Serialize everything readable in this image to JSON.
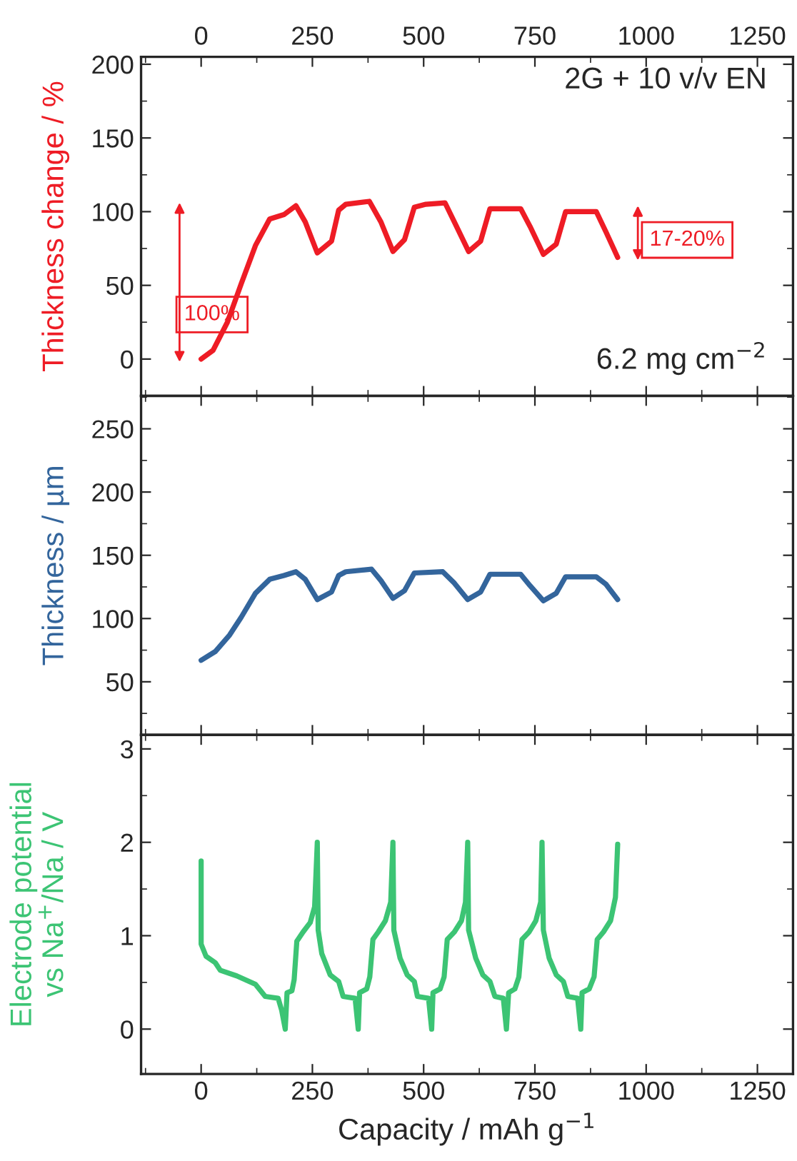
{
  "chart_data": [
    {
      "type": "line",
      "ylabel": "Thickness change / %",
      "xlim": [
        -135,
        1330
      ],
      "ylim": [
        -25,
        205
      ],
      "yticks": [
        0,
        50,
        100,
        150,
        200
      ],
      "x2lim": [
        -135,
        1330
      ],
      "x2ticks": [
        0,
        250,
        500,
        750,
        1000,
        1250
      ],
      "tick_labels": "y",
      "grid": false,
      "x": [
        0,
        27,
        59,
        90,
        122,
        154,
        186,
        213,
        234,
        261,
        293,
        309,
        325,
        378,
        404,
        431,
        457,
        479,
        505,
        548,
        569,
        601,
        628,
        649,
        718,
        739,
        769,
        798,
        819,
        888,
        910,
        936
      ],
      "series": [
        {
          "color": "#ee1c25",
          "values": [
            0,
            6,
            25,
            51,
            77,
            95,
            98,
            104,
            93,
            72,
            80,
            101,
            105,
            107,
            93,
            73,
            81,
            103,
            105,
            106,
            93,
            73,
            80,
            102,
            102,
            90,
            71,
            78,
            100,
            100,
            86,
            69
          ]
        }
      ],
      "annotations": [
        "2G + 10 v/v EN",
        "6.2 mg cm$^{−2}$",
        "100%",
        "17-20%"
      ]
    },
    {
      "type": "line",
      "ylabel": "Thickness / µm",
      "xlim": [
        -135,
        1330
      ],
      "ylim": [
        8,
        276
      ],
      "yticks": [
        50,
        100,
        150,
        200,
        250
      ],
      "tick_labels": "y",
      "grid": false,
      "x": [
        0,
        32,
        64,
        90,
        122,
        154,
        186,
        213,
        234,
        261,
        293,
        309,
        325,
        383,
        404,
        431,
        457,
        479,
        543,
        569,
        599,
        628,
        649,
        718,
        739,
        769,
        798,
        819,
        888,
        910,
        936
      ],
      "series": [
        {
          "color": "#33659c",
          "values": [
            67,
            74,
            87,
            101,
            120,
            131,
            134,
            137,
            131,
            115,
            121,
            134,
            137,
            139,
            130,
            116,
            122,
            136,
            137,
            128,
            115,
            121,
            135,
            135,
            126,
            114,
            120,
            133,
            133,
            127,
            115
          ]
        }
      ]
    },
    {
      "type": "line",
      "xlabel": "Capacity / mAh g$^{−1}$",
      "ylabel": "Electrode potential\nvs Na$^{+}$/Na / V",
      "xlim": [
        -135,
        1330
      ],
      "xticks": [
        0,
        250,
        500,
        750,
        1000,
        1250
      ],
      "ylim": [
        -0.48,
        3.15
      ],
      "yticks": [
        0,
        1,
        2,
        3
      ],
      "grid": false,
      "x": [
        0,
        0,
        11,
        32,
        43,
        80,
        122,
        144,
        173,
        181,
        189,
        193,
        204,
        209,
        215,
        229,
        245,
        255,
        261,
        263,
        271,
        290,
        309,
        319,
        346,
        353,
        356,
        372,
        379,
        386,
        398,
        414,
        426,
        431,
        433,
        447,
        463,
        479,
        486,
        511,
        518,
        521,
        537,
        546,
        553,
        569,
        585,
        594,
        599,
        601,
        617,
        633,
        649,
        660,
        679,
        686,
        691,
        705,
        714,
        721,
        737,
        752,
        763,
        766,
        769,
        782,
        798,
        814,
        824,
        846,
        853,
        856,
        872,
        883,
        890,
        904,
        920,
        931,
        936
      ],
      "series": [
        {
          "color": "#3cc474",
          "values": [
            1.8,
            0.91,
            0.78,
            0.71,
            0.63,
            0.57,
            0.48,
            0.35,
            0.33,
            0.2,
            0.0,
            0.39,
            0.41,
            0.53,
            0.94,
            1.04,
            1.14,
            1.31,
            2.0,
            1.06,
            0.81,
            0.58,
            0.51,
            0.35,
            0.33,
            0.0,
            0.39,
            0.43,
            0.56,
            0.96,
            1.04,
            1.16,
            1.36,
            2.0,
            1.06,
            0.76,
            0.58,
            0.51,
            0.35,
            0.33,
            0.0,
            0.39,
            0.43,
            0.56,
            0.96,
            1.04,
            1.16,
            1.36,
            2.0,
            1.06,
            0.76,
            0.58,
            0.51,
            0.35,
            0.33,
            0.0,
            0.39,
            0.43,
            0.56,
            0.96,
            1.04,
            1.16,
            1.36,
            2.0,
            1.06,
            0.76,
            0.58,
            0.51,
            0.35,
            0.33,
            0.0,
            0.39,
            0.43,
            0.56,
            0.96,
            1.04,
            1.16,
            1.41,
            1.98
          ]
        }
      ]
    }
  ]
}
